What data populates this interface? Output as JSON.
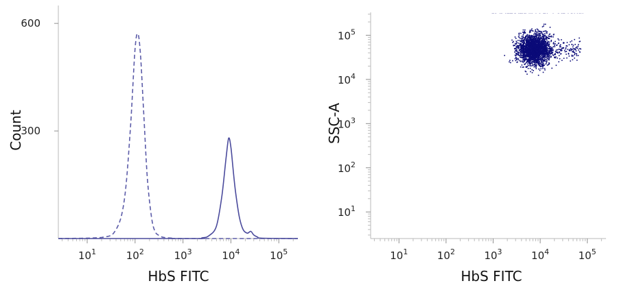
{
  "chart_data": [
    {
      "type": "histogram",
      "xlabel": "HbS FITC",
      "ylabel": "Count",
      "x_scale": "log",
      "xlim": [
        2.5,
        250000
      ],
      "ylim": [
        0,
        650
      ],
      "x_ticks": [
        {
          "value": 10,
          "base": "10",
          "exp": "1"
        },
        {
          "value": 100,
          "base": "10",
          "exp": "2"
        },
        {
          "value": 1000,
          "base": "10",
          "exp": "3"
        },
        {
          "value": 10000,
          "base": "10",
          "exp": "4"
        },
        {
          "value": 100000,
          "base": "10",
          "exp": "5"
        }
      ],
      "y_ticks": [
        {
          "value": 300,
          "label": "300"
        },
        {
          "value": 600,
          "label": "600"
        }
      ],
      "series": [
        {
          "style": "dashed",
          "color": "#5b5ba8",
          "x": [
            2.5,
            20,
            40,
            60,
            80,
            100,
            115,
            130,
            150,
            180,
            220,
            260,
            320,
            400,
            600,
            1000,
            250000
          ],
          "y": [
            0,
            3,
            25,
            110,
            310,
            530,
            570,
            510,
            360,
            170,
            60,
            20,
            8,
            3,
            1,
            0,
            0
          ]
        },
        {
          "style": "solid",
          "color": "#4a4a9c",
          "x": [
            2.5,
            1500,
            2500,
            3500,
            5000,
            6500,
            8000,
            9000,
            10000,
            11000,
            12500,
            15000,
            18000,
            22000,
            26000,
            30000,
            36000,
            45000,
            250000
          ],
          "y": [
            0,
            0,
            2,
            8,
            35,
            120,
            230,
            280,
            255,
            200,
            130,
            60,
            25,
            15,
            20,
            10,
            4,
            1,
            0
          ]
        }
      ]
    },
    {
      "type": "scatter",
      "xlabel": "HbS FITC",
      "ylabel": "SSC-A",
      "x_scale": "log",
      "y_scale": "log",
      "xlim": [
        2.5,
        250000
      ],
      "ylim": [
        2.5,
        330000
      ],
      "x_ticks": [
        {
          "value": 10,
          "base": "10",
          "exp": "1"
        },
        {
          "value": 100,
          "base": "10",
          "exp": "2"
        },
        {
          "value": 1000,
          "base": "10",
          "exp": "3"
        },
        {
          "value": 10000,
          "base": "10",
          "exp": "4"
        },
        {
          "value": 100000,
          "base": "10",
          "exp": "5"
        }
      ],
      "y_ticks": [
        {
          "value": 10,
          "base": "10",
          "exp": "1"
        },
        {
          "value": 100,
          "base": "10",
          "exp": "2"
        },
        {
          "value": 1000,
          "base": "10",
          "exp": "3"
        },
        {
          "value": 10000,
          "base": "10",
          "exp": "4"
        },
        {
          "value": 100000,
          "base": "10",
          "exp": "5"
        }
      ],
      "point_color": "#0a0a78",
      "cluster": {
        "center": [
          7500,
          50000
        ],
        "log_spread": [
          0.16,
          0.17
        ],
        "x_range": [
          1500,
          130000
        ],
        "y_range": [
          9000,
          260000
        ]
      }
    }
  ]
}
